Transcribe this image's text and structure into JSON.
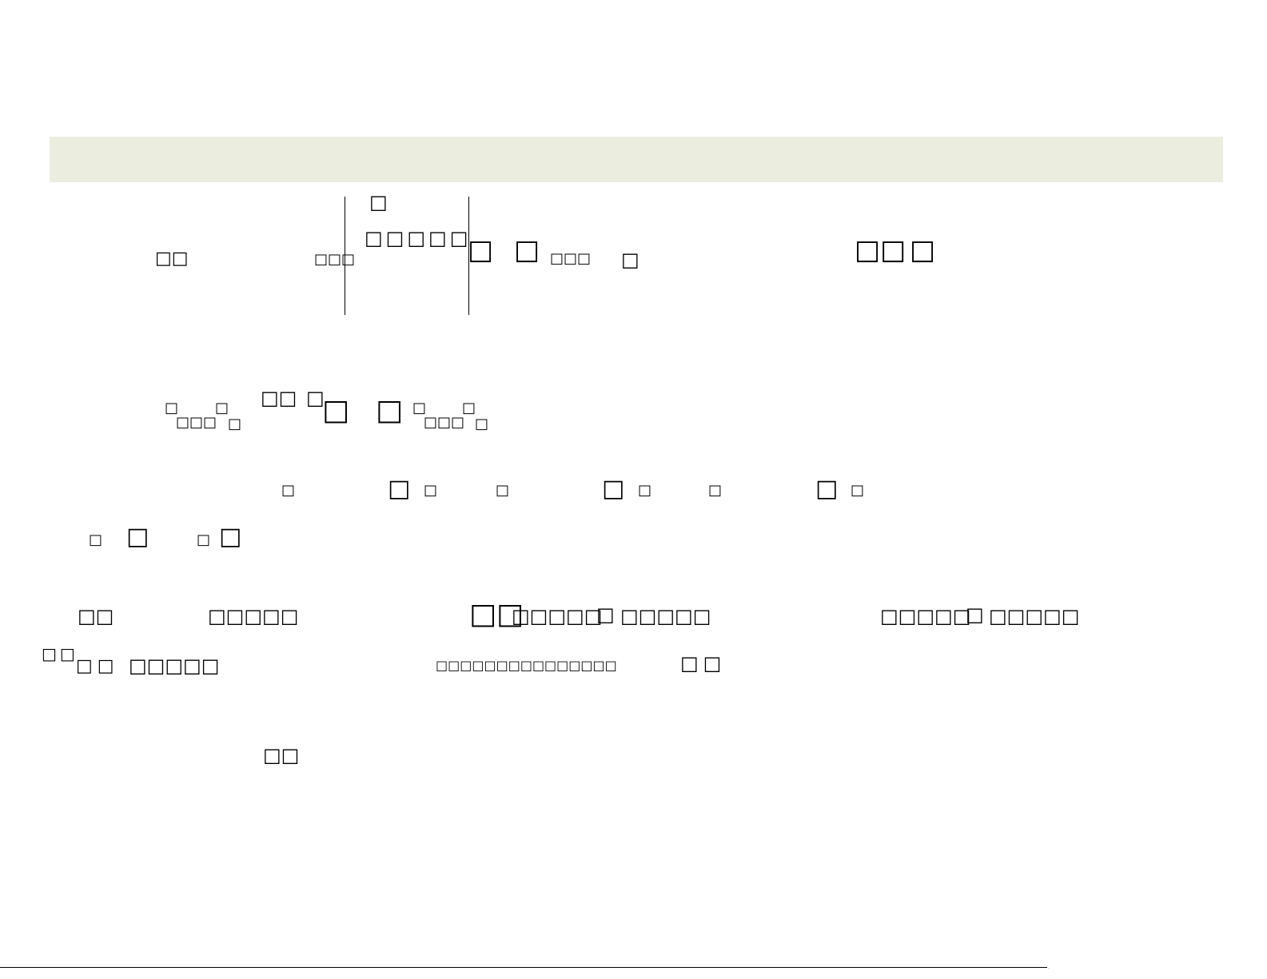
{
  "colors": {
    "header_band": "#ebeedf",
    "text": "#000000"
  },
  "row1": {
    "t1": "□□",
    "t2": "□□□",
    "t3": "□",
    "t4": "□□□□□",
    "t5": "□",
    "t6": "□",
    "t7": "□□□",
    "t8": "□",
    "t9": "□□",
    "t10": "□"
  },
  "row2": {
    "t1": "□",
    "t2": "□□□",
    "t3": "□",
    "t4": "□",
    "t5": "□□",
    "t6": "□",
    "t7": "□",
    "t8": "□",
    "t9": "□",
    "t10": "□□□",
    "t11": "□",
    "t12": "□"
  },
  "row3": {
    "t1": "□",
    "t2": "□",
    "t3": "□",
    "t4": "□",
    "t5": "□",
    "t6": "□",
    "t7": "□",
    "t8": "□",
    "t9": "□"
  },
  "row4": {
    "t1": "□",
    "t2": "□",
    "t3": "□",
    "t4": "□"
  },
  "row5": {
    "t1": "□□",
    "t2": "□□□□□",
    "t3": "□□",
    "t4": "□□□□□",
    "t5": "□",
    "t6": "□□□□□",
    "t7": "□□□□□",
    "t8": "□",
    "t9": "□□□□□"
  },
  "row6": {
    "t1": "□□",
    "t2": "□□",
    "t3": "□□□□□",
    "t4": "□□□□□□□□□□□□□□□",
    "t5": "□□"
  },
  "row7": {
    "t1": "□□"
  }
}
